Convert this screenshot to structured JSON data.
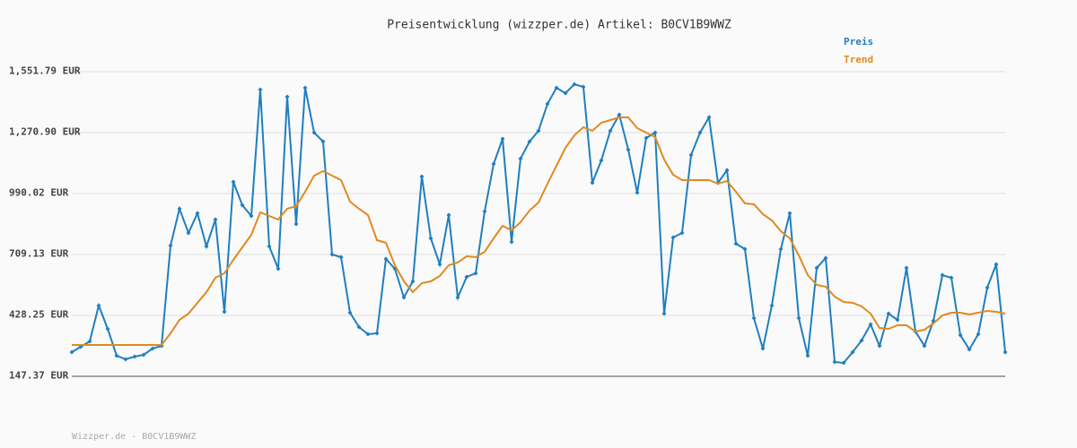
{
  "chart_data": {
    "type": "line",
    "title": "Preisentwicklung (wizzper.de) Artikel: B0CV1B9WWZ",
    "footer": "Wizzper.de - B0CV1B9WWZ",
    "ylim": [
      147.37,
      1551.79
    ],
    "yticks": [
      {
        "value": 147.37,
        "label": "147.37 EUR"
      },
      {
        "value": 428.25,
        "label": "428.25 EUR"
      },
      {
        "value": 709.13,
        "label": "709.13 EUR"
      },
      {
        "value": 990.02,
        "label": "990.02 EUR"
      },
      {
        "value": 1270.9,
        "label": "1,270.90 EUR"
      },
      {
        "value": 1551.79,
        "label": "1,551.79 EUR"
      }
    ],
    "grid": true,
    "legend": "top-right",
    "series": [
      {
        "name": "Preis",
        "color": "#1f7fc0",
        "markers": true,
        "values": [
          258.9,
          283.7,
          308.5,
          473.7,
          366.3,
          242.4,
          225.9,
          238.3,
          246.5,
          275.4,
          287.8,
          750.5,
          919.8,
          808.3,
          899.2,
          746.3,
          870.3,
          444.8,
          1043.7,
          936.4,
          886.8,
          1469.2,
          746.3,
          643.1,
          1436.1,
          849.6,
          1477.5,
          1270.9,
          1229.6,
          709.1,
          696.8,
          440.7,
          374.6,
          341.5,
          345.7,
          688.5,
          643.1,
          510.9,
          585.2,
          1068.5,
          783.5,
          663.7,
          890.9,
          510.9,
          605.9,
          622.4,
          907.4,
          1126.4,
          1242.0,
          767.0,
          1151.1,
          1229.6,
          1279.2,
          1403.1,
          1477.5,
          1452.7,
          1494.0,
          1481.6,
          1039.6,
          1142.9,
          1279.2,
          1353.5,
          1192.4,
          994.2,
          1246.1,
          1270.9,
          436.5,
          787.6,
          808.3,
          1167.7,
          1270.9,
          1341.1,
          1039.6,
          1097.4,
          758.7,
          733.9,
          415.9,
          275.4,
          473.7,
          733.9,
          899.2,
          415.9,
          242.4,
          647.2,
          692.6,
          213.5,
          209.3,
          258.9,
          312.6,
          387.0,
          287.8,
          436.5,
          407.6,
          647.2,
          353.9,
          287.8,
          403.5,
          614.2,
          601.8,
          337.4,
          271.3,
          341.5,
          556.3,
          663.7,
          258.9
        ]
      },
      {
        "name": "Trend",
        "color": "#e08a1e",
        "markers": false,
        "values": [
          292.0,
          292.0,
          292.0,
          292.0,
          292.0,
          292.0,
          292.0,
          292.0,
          292.0,
          292.0,
          292.0,
          345.7,
          407.6,
          436.5,
          486.1,
          535.7,
          601.8,
          622.4,
          684.4,
          742.2,
          800.0,
          903.3,
          886.8,
          870.3,
          919.8,
          932.2,
          998.3,
          1072.7,
          1093.3,
          1072.7,
          1052.0,
          952.9,
          919.8,
          890.9,
          775.3,
          762.9,
          659.6,
          585.2,
          535.7,
          577.0,
          585.2,
          610.0,
          659.6,
          672.0,
          700.9,
          696.8,
          721.6,
          783.5,
          841.3,
          820.7,
          857.9,
          911.6,
          948.7,
          1035.5,
          1118.1,
          1200.7,
          1258.5,
          1295.7,
          1279.2,
          1316.4,
          1328.8,
          1341.1,
          1341.1,
          1291.6,
          1270.9,
          1250.3,
          1147.0,
          1076.8,
          1052.0,
          1052.0,
          1052.0,
          1052.0,
          1035.5,
          1047.9,
          998.3,
          944.6,
          940.5,
          895.0,
          866.1,
          816.6,
          783.5,
          705.0,
          614.2,
          568.7,
          560.4,
          515.0,
          490.2,
          486.1,
          469.6,
          436.5,
          370.5,
          366.3,
          382.8,
          382.8,
          353.9,
          362.2,
          391.1,
          428.3,
          440.7,
          440.7,
          432.4,
          440.7,
          448.9,
          444.8,
          436.5
        ]
      }
    ]
  }
}
